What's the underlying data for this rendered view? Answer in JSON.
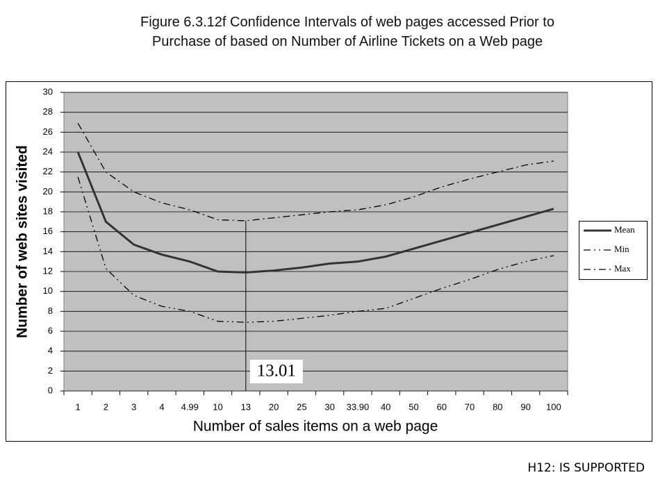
{
  "chart_data": {
    "type": "line",
    "title": "Figure 6.3.12f  Confidence Intervals of web pages accessed Prior to\nPurchase of based on Number of  Airline Tickets on a Web page",
    "x_label": "Number of sales items on a web page",
    "y_label": "Number of web sites visited",
    "categories": [
      "1",
      "2",
      "3",
      "4",
      "4.99",
      "10",
      "13",
      "20",
      "25",
      "30",
      "33.90",
      "40",
      "50",
      "60",
      "70",
      "80",
      "90",
      "100"
    ],
    "series": [
      {
        "name": "Mean",
        "color": "#333333",
        "values": [
          24,
          17,
          14.7,
          13.7,
          13,
          12,
          11.9,
          12.1,
          12.4,
          12.8,
          13,
          13.5,
          14.3,
          15.1,
          15.9,
          16.7,
          17.5,
          18.3
        ]
      },
      {
        "name": "Min",
        "color": "#000000",
        "values": [
          21.5,
          12.3,
          9.6,
          8.5,
          8,
          7,
          6.9,
          7,
          7.3,
          7.6,
          8,
          8.3,
          9.3,
          10.3,
          11.2,
          12.2,
          13,
          13.6
        ]
      },
      {
        "name": "Max",
        "color": "#000000",
        "values": [
          26.9,
          22,
          20,
          18.9,
          18.2,
          17.2,
          17.1,
          17.4,
          17.7,
          18,
          18.2,
          18.7,
          19.5,
          20.5,
          21.3,
          22,
          22.7,
          23.1
        ]
      }
    ],
    "ylim": [
      0,
      30
    ],
    "yticks": [
      0,
      2,
      4,
      6,
      8,
      10,
      12,
      14,
      16,
      18,
      20,
      22,
      24,
      26,
      28,
      30
    ],
    "grid": true,
    "legend": "right",
    "annotation": "13.01"
  },
  "footer_note": "H12: IS SUPPORTED"
}
